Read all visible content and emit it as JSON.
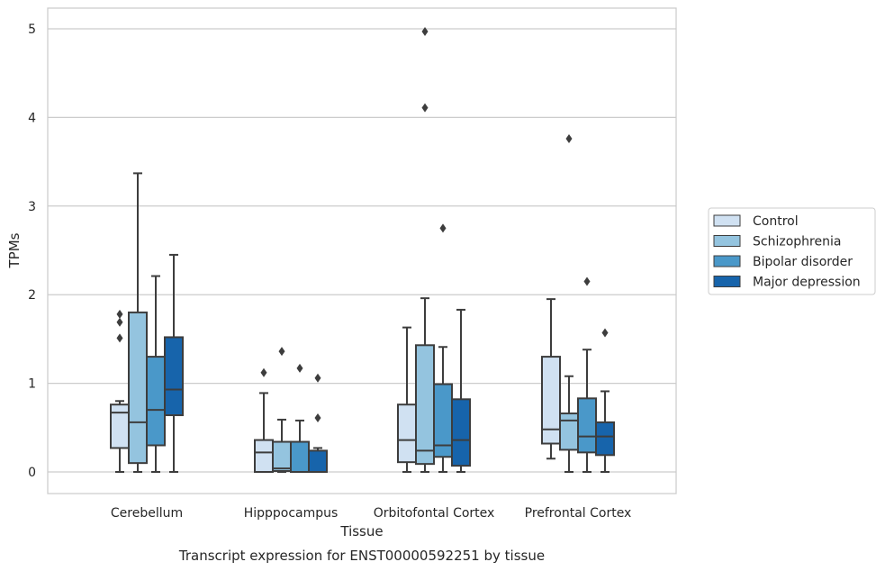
{
  "chart_data": {
    "type": "box",
    "title": "",
    "caption": "Transcript expression for ENST00000592251 by tissue",
    "xlabel": "Tissue",
    "ylabel": "TPMs",
    "ylim": [
      -0.25,
      5.23
    ],
    "yticks": [
      0,
      1,
      2,
      3,
      4,
      5
    ],
    "grid": true,
    "legend_position": "right",
    "categories": [
      "Cerebellum",
      "Hipppocampus",
      "Orbitofontal Cortex",
      "Prefrontal Cortex"
    ],
    "series": [
      {
        "name": "Control",
        "color": "#d0e1f2",
        "boxes": [
          {
            "whisker_low": 0.0,
            "q1": 0.27,
            "median": 0.67,
            "q3": 0.76,
            "whisker_high": 0.8,
            "outliers": [
              1.51,
              1.69,
              1.78
            ]
          },
          {
            "whisker_low": 0.0,
            "q1": 0.0,
            "median": 0.22,
            "q3": 0.36,
            "whisker_high": 0.89,
            "outliers": [
              1.12
            ]
          },
          {
            "whisker_low": 0.0,
            "q1": 0.11,
            "median": 0.36,
            "q3": 0.76,
            "whisker_high": 1.63,
            "outliers": []
          },
          {
            "whisker_low": 0.15,
            "q1": 0.32,
            "median": 0.48,
            "q3": 1.3,
            "whisker_high": 1.95,
            "outliers": []
          }
        ]
      },
      {
        "name": "Schizophrenia",
        "color": "#94c4df",
        "boxes": [
          {
            "whisker_low": 0.0,
            "q1": 0.1,
            "median": 0.56,
            "q3": 1.8,
            "whisker_high": 3.37,
            "outliers": []
          },
          {
            "whisker_low": 0.0,
            "q1": 0.01,
            "median": 0.04,
            "q3": 0.34,
            "whisker_high": 0.59,
            "outliers": [
              1.36
            ]
          },
          {
            "whisker_low": 0.0,
            "q1": 0.09,
            "median": 0.24,
            "q3": 1.43,
            "whisker_high": 1.96,
            "outliers": [
              4.11,
              4.97
            ]
          },
          {
            "whisker_low": 0.0,
            "q1": 0.25,
            "median": 0.58,
            "q3": 0.66,
            "whisker_high": 1.08,
            "outliers": [
              3.76
            ]
          }
        ]
      },
      {
        "name": "Bipolar disorder",
        "color": "#4a98c9",
        "boxes": [
          {
            "whisker_low": 0.0,
            "q1": 0.3,
            "median": 0.7,
            "q3": 1.3,
            "whisker_high": 2.21,
            "outliers": []
          },
          {
            "whisker_low": 0.0,
            "q1": 0.0,
            "median": 0.0,
            "q3": 0.34,
            "whisker_high": 0.58,
            "outliers": [
              1.17
            ]
          },
          {
            "whisker_low": 0.0,
            "q1": 0.17,
            "median": 0.3,
            "q3": 0.99,
            "whisker_high": 1.41,
            "outliers": [
              2.75
            ]
          },
          {
            "whisker_low": 0.0,
            "q1": 0.22,
            "median": 0.4,
            "q3": 0.83,
            "whisker_high": 1.38,
            "outliers": [
              2.15
            ]
          }
        ]
      },
      {
        "name": "Major depression",
        "color": "#1764ab",
        "boxes": [
          {
            "whisker_low": 0.0,
            "q1": 0.64,
            "median": 0.93,
            "q3": 1.52,
            "whisker_high": 2.45,
            "outliers": []
          },
          {
            "whisker_low": 0.0,
            "q1": 0.0,
            "median": 0.0,
            "q3": 0.24,
            "whisker_high": 0.27,
            "outliers": [
              0.61,
              1.06
            ]
          },
          {
            "whisker_low": 0.0,
            "q1": 0.07,
            "median": 0.36,
            "q3": 0.82,
            "whisker_high": 1.83,
            "outliers": []
          },
          {
            "whisker_low": 0.0,
            "q1": 0.19,
            "median": 0.4,
            "q3": 0.56,
            "whisker_high": 0.91,
            "outliers": [
              1.57
            ]
          }
        ]
      }
    ]
  }
}
